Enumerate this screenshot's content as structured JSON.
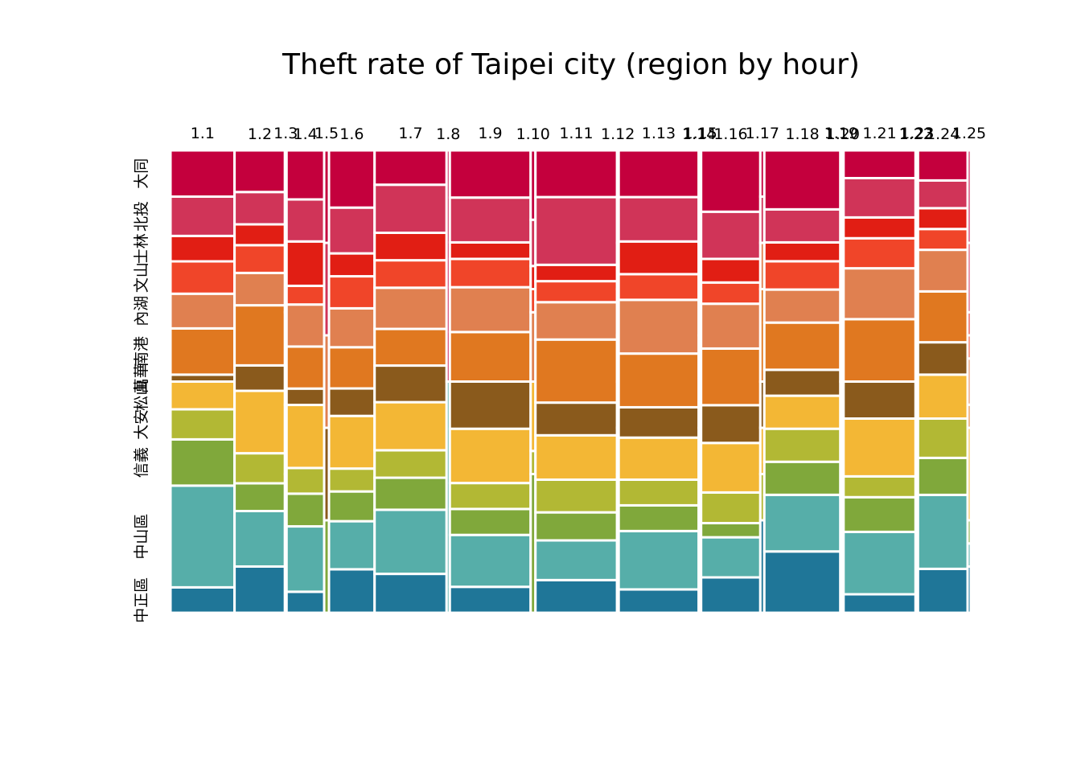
{
  "chart_data": {
    "type": "mosaic",
    "title": "Theft rate of Taipei city (region by hour)",
    "columns": [
      "1.1",
      "1.2",
      "1.3",
      "1.4",
      "1.5",
      "1.6",
      "1.7",
      "1.8",
      "1.9",
      "1.10",
      "1.11",
      "1.12",
      "1.13",
      "1.14",
      "1.15",
      "1.16",
      "1.17",
      "1.18",
      "1.19",
      "1.20",
      "1.21",
      "1.22",
      "1.23",
      "1.24",
      "1.25"
    ],
    "column_widths": [
      0.08,
      0.063,
      0.002,
      0.047,
      0.006,
      0.057,
      0.09,
      0.004,
      0.101,
      0.006,
      0.102,
      0.002,
      0.1,
      0.001,
      0.002,
      0.074,
      0.005,
      0.095,
      0.002,
      0.002,
      0.09,
      0.001,
      0.002,
      0.062,
      0.004
    ],
    "rows": [
      "中正區",
      "中山區",
      "信義區",
      "大安區",
      "松山區",
      "萬華區",
      "南港區",
      "內湖區",
      "文山區",
      "士林區",
      "北投區",
      "大同區"
    ],
    "row_labels_visible": [
      "中正區",
      "中山區",
      "信義",
      "大安",
      "松山",
      "萬華",
      "南港",
      "內湖",
      "文山",
      "士林",
      "北投",
      "大同"
    ],
    "row_colors": [
      "#1f7698",
      "#56aea9",
      "#80a83b",
      "#b2b834",
      "#f3b735",
      "#8a5a1c",
      "#e07820",
      "#e08050",
      "#f04529",
      "#e11e14",
      "#d03458",
      "#c4003d"
    ],
    "proportions": [
      [
        0.055,
        0.22,
        0.1,
        0.065,
        0.06,
        0.015,
        0.1,
        0.075,
        0.07,
        0.055,
        0.085,
        0.1
      ],
      [
        0.1,
        0.12,
        0.06,
        0.065,
        0.135,
        0.055,
        0.13,
        0.07,
        0.06,
        0.045,
        0.07,
        0.09
      ],
      [
        0.3,
        0.15,
        0.0,
        0.0,
        0.2,
        0.0,
        0.0,
        0.0,
        0.15,
        0.0,
        0.0,
        0.2
      ],
      [
        0.045,
        0.14,
        0.07,
        0.055,
        0.135,
        0.035,
        0.09,
        0.09,
        0.04,
        0.095,
        0.09,
        0.105
      ],
      [
        0.0,
        0.0,
        0.2,
        0.0,
        0.0,
        0.2,
        0.0,
        0.2,
        0.0,
        0.0,
        0.2,
        0.2
      ],
      [
        0.095,
        0.105,
        0.065,
        0.05,
        0.115,
        0.06,
        0.09,
        0.085,
        0.07,
        0.05,
        0.1,
        0.125
      ],
      [
        0.085,
        0.14,
        0.07,
        0.06,
        0.105,
        0.08,
        0.08,
        0.09,
        0.06,
        0.06,
        0.105,
        0.075
      ],
      [
        0.0,
        0.5,
        0.0,
        0.0,
        0.0,
        0.0,
        0.0,
        0.0,
        0.0,
        0.0,
        0.0,
        0.5
      ],
      [
        0.055,
        0.11,
        0.055,
        0.055,
        0.115,
        0.1,
        0.105,
        0.095,
        0.06,
        0.035,
        0.095,
        0.1
      ],
      [
        0.0,
        0.0,
        0.3,
        0.05,
        0.15,
        0.0,
        0.0,
        0.15,
        0.05,
        0.05,
        0.1,
        0.15
      ],
      [
        0.07,
        0.085,
        0.06,
        0.07,
        0.095,
        0.07,
        0.135,
        0.08,
        0.045,
        0.035,
        0.145,
        0.1
      ],
      [
        0.3,
        0.1,
        0.0,
        0.1,
        0.1,
        0.0,
        0.0,
        0.1,
        0.1,
        0.1,
        0.0,
        0.1
      ],
      [
        0.05,
        0.125,
        0.055,
        0.055,
        0.09,
        0.065,
        0.115,
        0.115,
        0.055,
        0.07,
        0.095,
        0.1
      ],
      [
        0.4,
        0.0,
        0.0,
        0.2,
        0.0,
        0.0,
        0.0,
        0.2,
        0.0,
        0.2,
        0.0,
        0.0
      ],
      [
        0.25,
        0.25,
        0.0,
        0.0,
        0.25,
        0.0,
        0.0,
        0.0,
        0.0,
        0.25,
        0.0,
        0.0
      ],
      [
        0.075,
        0.085,
        0.03,
        0.065,
        0.105,
        0.08,
        0.12,
        0.095,
        0.045,
        0.05,
        0.1,
        0.13
      ],
      [
        0.2,
        0.0,
        0.0,
        0.1,
        0.1,
        0.1,
        0.2,
        0.1,
        0.0,
        0.0,
        0.1,
        0.1
      ],
      [
        0.13,
        0.12,
        0.07,
        0.07,
        0.07,
        0.055,
        0.1,
        0.07,
        0.06,
        0.04,
        0.07,
        0.125
      ],
      [
        0.25,
        0.0,
        0.0,
        0.25,
        0.0,
        0.0,
        0.0,
        0.0,
        0.0,
        0.0,
        0.0,
        0.5
      ],
      [
        0.5,
        0.0,
        0.0,
        0.0,
        0.0,
        0.0,
        0.0,
        0.5,
        0.0,
        0.0,
        0.0,
        0.0
      ],
      [
        0.04,
        0.135,
        0.075,
        0.045,
        0.125,
        0.08,
        0.135,
        0.11,
        0.065,
        0.045,
        0.085,
        0.06
      ],
      [
        1.0,
        0.0,
        0.0,
        0.0,
        0.0,
        0.0,
        0.0,
        0.0,
        0.0,
        0.0,
        0.0,
        0.0
      ],
      [
        0.5,
        0.0,
        0.0,
        0.0,
        0.0,
        0.0,
        0.0,
        0.0,
        0.5,
        0.0,
        0.0,
        0.0
      ],
      [
        0.095,
        0.16,
        0.08,
        0.085,
        0.095,
        0.07,
        0.11,
        0.09,
        0.045,
        0.045,
        0.06,
        0.065
      ],
      [
        0.1,
        0.05,
        0.05,
        0.0,
        0.2,
        0.0,
        0.05,
        0.1,
        0.05,
        0.05,
        0.15,
        0.2
      ]
    ]
  }
}
